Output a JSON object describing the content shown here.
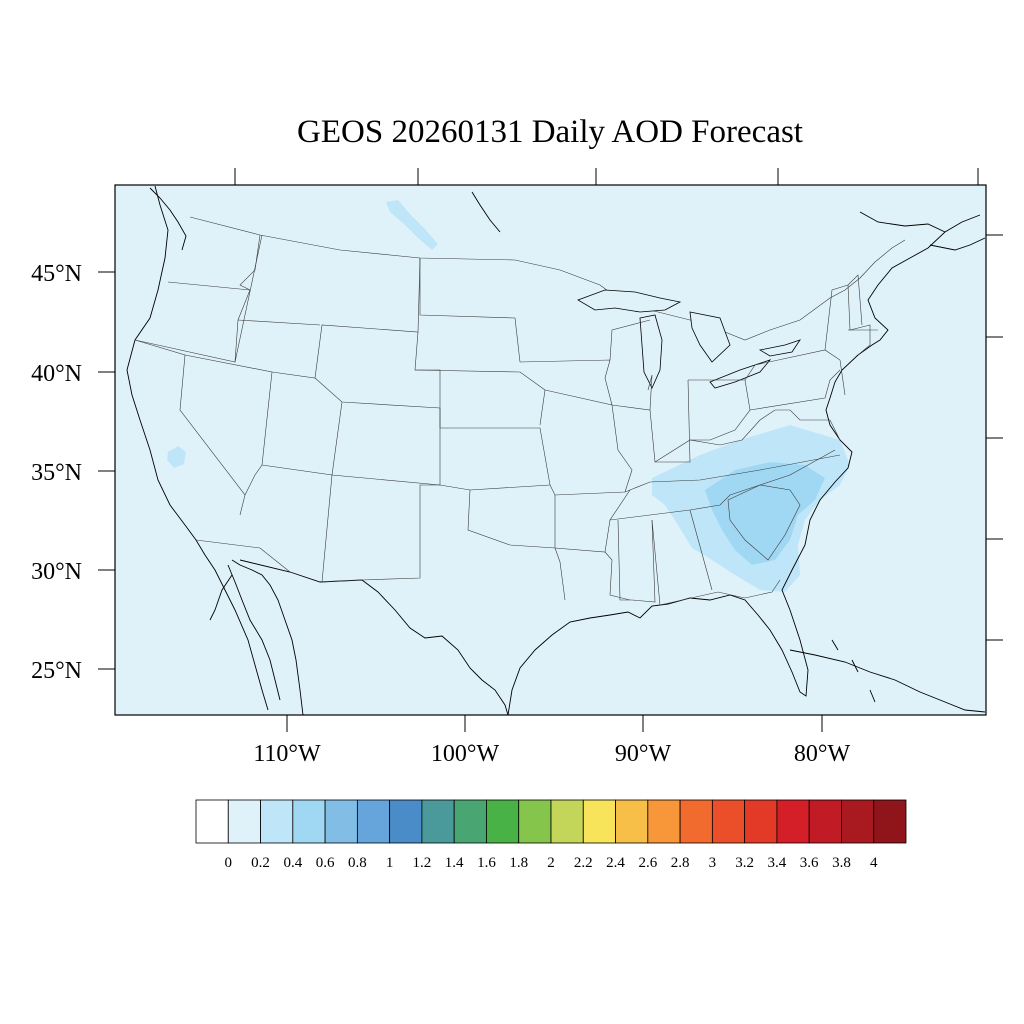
{
  "title": "GEOS 20260131 Daily AOD Forecast",
  "map": {
    "background_color": "#dff2fa",
    "lat_labels": [
      "45°N",
      "40°N",
      "35°N",
      "30°N",
      "25°N"
    ],
    "lon_labels": [
      "110°W",
      "100°W",
      "90°W",
      "80°W"
    ]
  },
  "colorbar": {
    "colors": [
      "#ffffff",
      "#dff2fa",
      "#bfe6f8",
      "#a0d8f4",
      "#82bde6",
      "#65a5dc",
      "#4a8cc8",
      "#4a9a9c",
      "#49a672",
      "#49b247",
      "#86c54c",
      "#c4d659",
      "#f7e45a",
      "#f7be48",
      "#f7973a",
      "#f26b2e",
      "#ea4f2a",
      "#e23a27",
      "#d41f29",
      "#c11c25",
      "#a81a20",
      "#8f151b"
    ],
    "labels": [
      "0",
      "0.2",
      "0.4",
      "0.6",
      "0.8",
      "1",
      "1.2",
      "1.4",
      "1.6",
      "1.8",
      "2",
      "2.2",
      "2.4",
      "2.6",
      "2.8",
      "3",
      "3.2",
      "3.4",
      "3.6",
      "3.8",
      "4"
    ]
  },
  "aod_features": [
    {
      "region": "Southeast US (Carolinas / Georgia)",
      "level": "0.4-0.6",
      "color": "#a0d8f4"
    },
    {
      "region": "Southeast US surrounding plume",
      "level": "0.2-0.4",
      "color": "#bfe6f8"
    },
    {
      "region": "Southern California",
      "level": "0.2-0.4",
      "color": "#bfe6f8"
    },
    {
      "region": "Montana / Canada border",
      "level": "0.2-0.4",
      "color": "#bfe6f8"
    }
  ]
}
